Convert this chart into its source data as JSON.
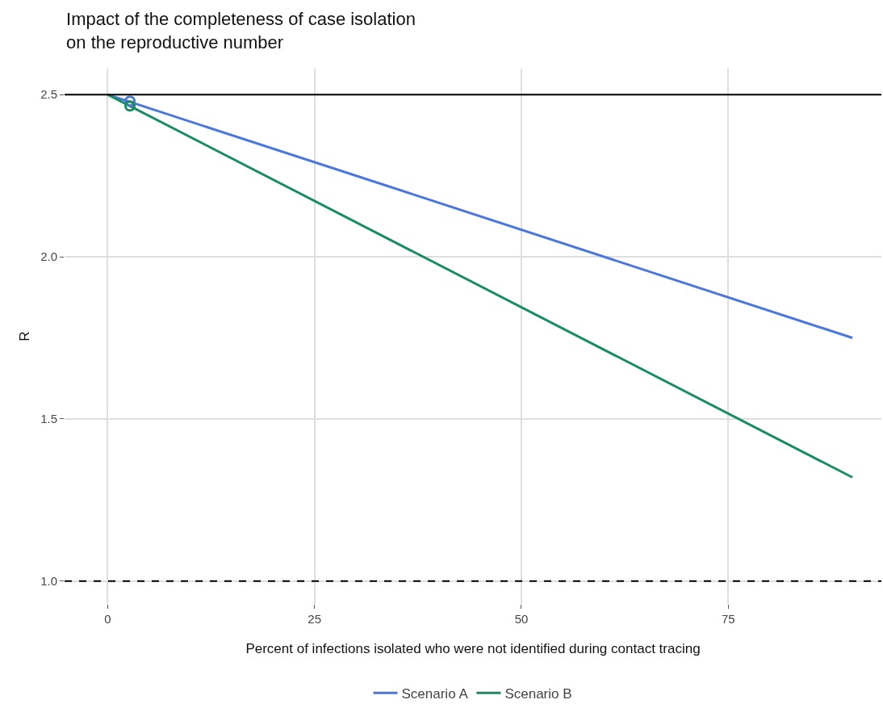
{
  "chart_data": {
    "type": "line",
    "title": "Impact of the completeness of case isolation\non the reproductive number",
    "xlabel": "Percent of infections isolated who were not identified during contact tracing",
    "ylabel": "R",
    "series": [
      {
        "name": "Scenario A",
        "color": "#4a77d9",
        "x": [
          0,
          90
        ],
        "values": [
          2.5,
          1.75
        ],
        "marker": "none"
      },
      {
        "name": "Scenario B",
        "color": "#1a8c63",
        "x": [
          0,
          90
        ],
        "values": [
          2.5,
          1.32
        ],
        "marker": "none"
      },
      {
        "type": "scatter",
        "color": "#4a77d9",
        "x": [
          2.7
        ],
        "values": [
          2.48
        ],
        "marker": "circle"
      },
      {
        "type": "scatter",
        "color": "#1a8c63",
        "x": [
          2.7
        ],
        "values": [
          2.465
        ],
        "marker": "circle"
      }
    ],
    "xlim": [
      -5.2,
      93.5
    ],
    "xticks": [
      0,
      25,
      50,
      75
    ],
    "ylim": [
      0.93,
      2.58
    ],
    "yticks": [
      {
        "value": 1.0,
        "label": "1.0"
      },
      1.5,
      {
        "value": 2.0,
        "label": "2.0"
      },
      2.5
    ],
    "ref_lines": [
      {
        "axis": "y",
        "value": 2.5,
        "color": "#000000",
        "line_style": "solid"
      },
      {
        "axis": "y",
        "value": 1.0,
        "color": "#000000",
        "line_style": "dashed"
      }
    ],
    "grid": true,
    "legend": "bottom",
    "line_style": "solid"
  }
}
